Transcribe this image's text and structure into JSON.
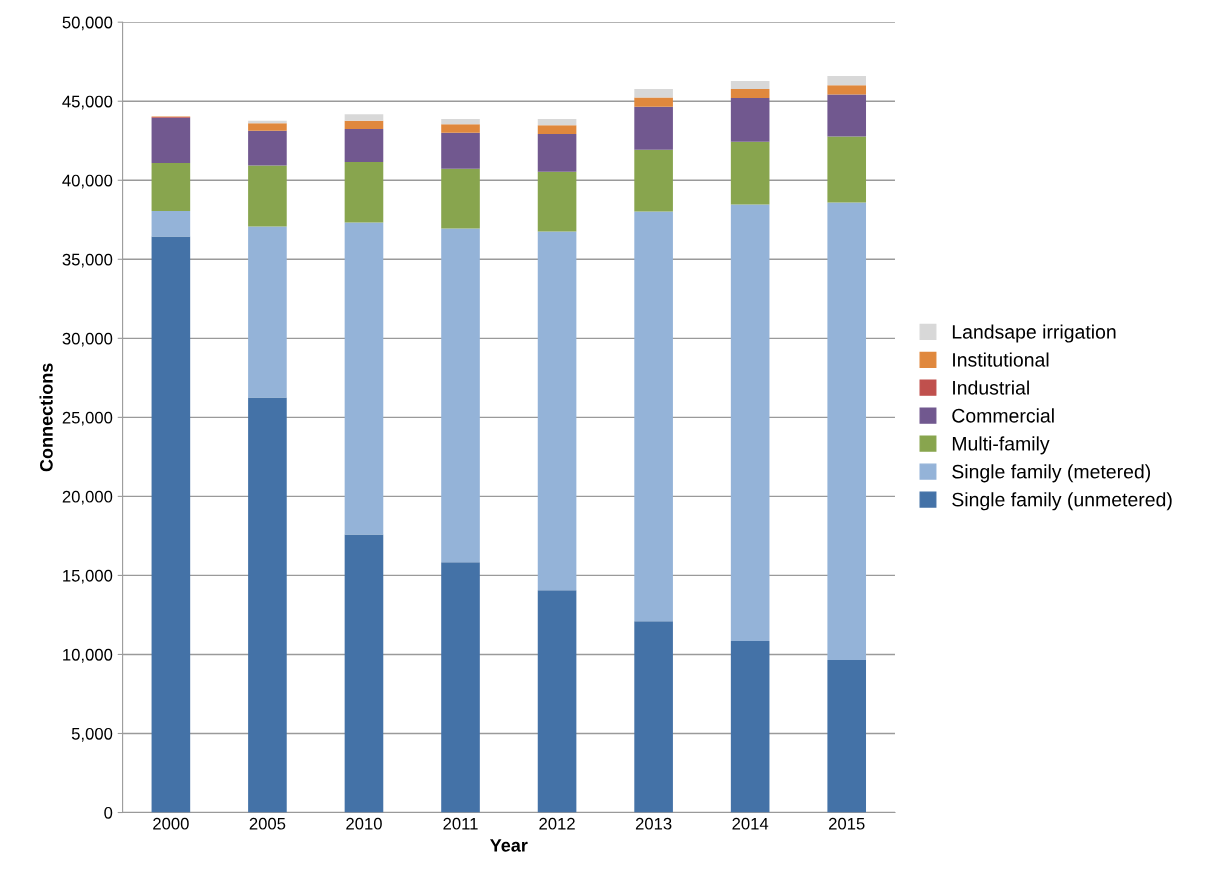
{
  "chart_data": {
    "type": "bar",
    "stacked": true,
    "xlabel": "Year",
    "ylabel": "Connections",
    "categories": [
      "2000",
      "2005",
      "2010",
      "2011",
      "2012",
      "2013",
      "2014",
      "2015"
    ],
    "ylim": [
      0,
      50000
    ],
    "yticks": [
      {
        "value": 0,
        "label": "0"
      },
      {
        "value": 5000,
        "label": "5,000"
      },
      {
        "value": 10000,
        "label": "10,000"
      },
      {
        "value": 15000,
        "label": "15,000"
      },
      {
        "value": 20000,
        "label": "20,000"
      },
      {
        "value": 25000,
        "label": "25,000"
      },
      {
        "value": 30000,
        "label": "30,000"
      },
      {
        "value": 35000,
        "label": "35,000"
      },
      {
        "value": 40000,
        "label": "40,000"
      },
      {
        "value": 45000,
        "label": "45,000"
      },
      {
        "value": 50000,
        "label": "50,000"
      }
    ],
    "grid": "y",
    "legend": "right",
    "series": [
      {
        "name": "Single family (unmetered)",
        "color": "#4472a7",
        "values": [
          36450,
          26250,
          17590,
          15830,
          14060,
          12100,
          10850,
          9650
        ]
      },
      {
        "name": "Single family (metered)",
        "color": "#94b3d8",
        "values": [
          1600,
          10820,
          19740,
          21120,
          22700,
          25920,
          27610,
          28950
        ]
      },
      {
        "name": "Multi-family",
        "color": "#88a54e",
        "values": [
          3050,
          3870,
          3820,
          3780,
          3780,
          3910,
          3970,
          4170
        ]
      },
      {
        "name": "Commercial",
        "color": "#71588f",
        "values": [
          2850,
          2190,
          2100,
          2270,
          2380,
          2720,
          2780,
          2650
        ]
      },
      {
        "name": "Industrial",
        "color": "#c0504d",
        "values": [
          50,
          null,
          null,
          null,
          null,
          null,
          null,
          null
        ]
      },
      {
        "name": "Institutional",
        "color": "#e0883d",
        "values": [
          30,
          470,
          510,
          550,
          560,
          580,
          570,
          590
        ]
      },
      {
        "name": "Landsape irrigation",
        "color": "#d8d8d8",
        "values": [
          0,
          160,
          410,
          330,
          400,
          550,
          500,
          590
        ]
      }
    ]
  }
}
